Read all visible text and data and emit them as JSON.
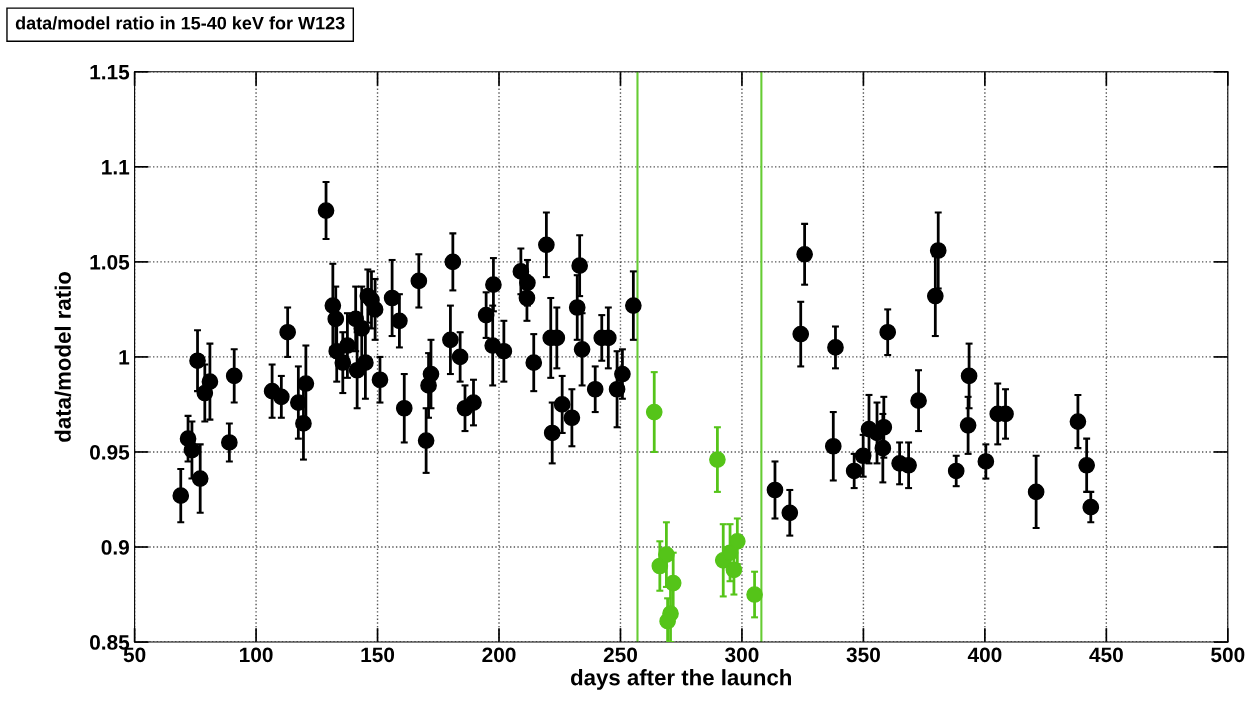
{
  "chart_data": {
    "type": "scatter",
    "title": "data/model ratio in 15-40 keV for W123",
    "xlabel": "days after the launch",
    "ylabel": "data/model ratio",
    "xlim": [
      50,
      500
    ],
    "xticks": [
      50,
      100,
      150,
      200,
      250,
      300,
      350,
      400,
      450,
      500
    ],
    "ylim": [
      0.85,
      1.15
    ],
    "yticks": [
      {
        "value": 0.85,
        "label": "0.85"
      },
      {
        "value": 0.9,
        "label": "0.9"
      },
      {
        "value": 0.95,
        "label": "0.95"
      },
      {
        "value": 1.0,
        "label": "1"
      },
      {
        "value": 1.05,
        "label": "1.05"
      },
      {
        "value": 1.1,
        "label": "1.1"
      },
      {
        "value": 1.15,
        "label": "1.15"
      }
    ],
    "grid": true,
    "legend": false,
    "marker": "circle",
    "ref_lines": [
      {
        "axis": "x",
        "value": 257,
        "color": "#66cc33",
        "line_style": "solid"
      },
      {
        "axis": "x",
        "value": 308,
        "color": "#66cc33",
        "line_style": "solid"
      }
    ],
    "series": [
      {
        "color": "#000000",
        "x": [
          69,
          72,
          73.6,
          75.9,
          77,
          78.9,
          81,
          89,
          91,
          106.6,
          110.4,
          113,
          117.4,
          119.5,
          120.5,
          128.8,
          131.6,
          132.8,
          133.2,
          135.7,
          137.6,
          141,
          141.6,
          143.5,
          145,
          146,
          147.5,
          149,
          151,
          156,
          159,
          161,
          167,
          170,
          171,
          172,
          180,
          181,
          184,
          186,
          189.5,
          194.7,
          197.4,
          197.7,
          202,
          209,
          211.7,
          211.5,
          214.3,
          219.5,
          221.3,
          223.8,
          221.9,
          226,
          230,
          232.2,
          233.2,
          234.2,
          239.6,
          242.3,
          245,
          248.6,
          250.8,
          255.3,
          313.6,
          319.7,
          324.2,
          325.8,
          337.6,
          338.5,
          346.2,
          349.9,
          352.3,
          355.6,
          358,
          358.4,
          360,
          364.9,
          368.6,
          372.7,
          379.6,
          380.8,
          388.2,
          393.1,
          393.5,
          400.4,
          405.3,
          408.5,
          421.1,
          438.3,
          441.9,
          443.6
        ],
        "values": [
          0.927,
          0.957,
          0.951,
          0.998,
          0.936,
          0.981,
          0.987,
          0.955,
          0.99,
          0.982,
          0.979,
          1.013,
          0.976,
          0.965,
          0.986,
          1.077,
          1.027,
          1.02,
          1.003,
          0.997,
          1.006,
          1.02,
          0.993,
          1.015,
          0.997,
          1.032,
          1.03,
          1.025,
          0.988,
          1.031,
          1.019,
          0.973,
          1.04,
          0.956,
          0.985,
          0.991,
          1.009,
          1.05,
          1.0,
          0.973,
          0.976,
          1.022,
          1.006,
          1.038,
          1.003,
          1.045,
          1.039,
          1.031,
          0.997,
          1.059,
          1.01,
          1.01,
          0.96,
          0.975,
          0.968,
          1.026,
          1.048,
          1.004,
          0.983,
          1.01,
          1.01,
          0.983,
          0.991,
          1.027,
          0.93,
          0.918,
          1.012,
          1.054,
          0.953,
          1.005,
          0.94,
          0.948,
          0.962,
          0.96,
          0.952,
          0.963,
          1.013,
          0.944,
          0.943,
          0.977,
          1.032,
          1.056,
          0.94,
          0.964,
          0.99,
          0.945,
          0.97,
          0.97,
          0.929,
          0.966,
          0.943,
          0.921
        ],
        "errors": [
          0.014,
          0.012,
          0.015,
          0.016,
          0.018,
          0.015,
          0.02,
          0.01,
          0.014,
          0.014,
          0.011,
          0.013,
          0.019,
          0.019,
          0.02,
          0.015,
          0.022,
          0.017,
          0.016,
          0.016,
          0.017,
          0.017,
          0.02,
          0.022,
          0.019,
          0.014,
          0.015,
          0.016,
          0.012,
          0.02,
          0.014,
          0.018,
          0.014,
          0.017,
          0.017,
          0.018,
          0.018,
          0.015,
          0.013,
          0.012,
          0.012,
          0.012,
          0.021,
          0.014,
          0.016,
          0.012,
          0.012,
          0.012,
          0.015,
          0.017,
          0.021,
          0.016,
          0.016,
          0.015,
          0.015,
          0.017,
          0.016,
          0.019,
          0.012,
          0.012,
          0.016,
          0.02,
          0.013,
          0.018,
          0.015,
          0.012,
          0.017,
          0.016,
          0.018,
          0.011,
          0.009,
          0.011,
          0.018,
          0.016,
          0.018,
          0.016,
          0.012,
          0.011,
          0.012,
          0.016,
          0.021,
          0.02,
          0.008,
          0.015,
          0.017,
          0.009,
          0.016,
          0.013,
          0.019,
          0.014,
          0.014,
          0.008
        ]
      },
      {
        "color": "#55c419",
        "x": [
          263.9,
          266.2,
          268.9,
          271.7,
          270.6,
          269.4,
          289.9,
          292.3,
          295.1,
          296.7,
          298.1,
          305.2
        ],
        "values": [
          0.971,
          0.89,
          0.896,
          0.881,
          0.865,
          0.861,
          0.946,
          0.893,
          0.897,
          0.888,
          0.903,
          0.875
        ],
        "errors": [
          0.021,
          0.013,
          0.017,
          0.016,
          0.015,
          0.012,
          0.017,
          0.019,
          0.015,
          0.013,
          0.012,
          0.012
        ]
      }
    ]
  }
}
